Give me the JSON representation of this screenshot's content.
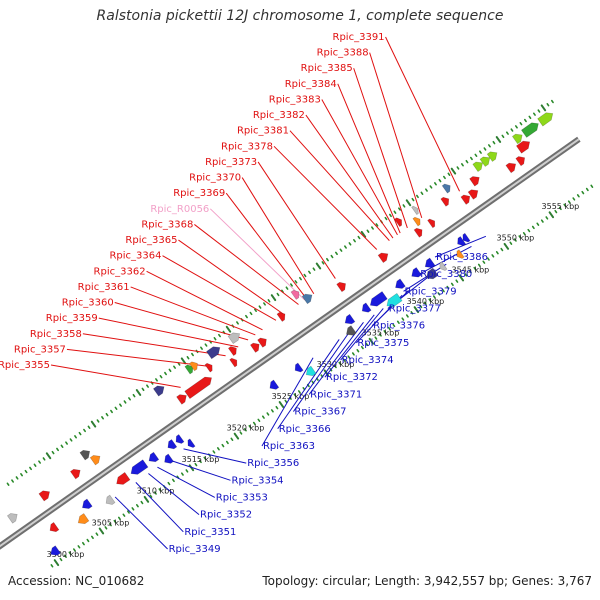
{
  "title": "Ralstonia pickettii 12J chromosome 1, complete sequence",
  "footer": {
    "accession": "Accession: NC_010682",
    "summary": "Topology: circular; Length: 3,942,557 bp; Genes: 3,767"
  },
  "colors": {
    "backbone": "#9a9a9a",
    "leader_top": "#e01010",
    "leader_rna": "#f2a0c8",
    "leader_bottom": "#1010c0",
    "tick": "#2a8a2a",
    "tick_major": "#2e7d32",
    "gene_red": "#e81818",
    "gene_blue": "#1a1adc",
    "gene_navy": "#3b3b8c",
    "gene_cyan": "#20e0e0",
    "gene_steel": "#4a78a8",
    "gene_grey": "#bdbdbd",
    "gene_darkgrey": "#555555",
    "gene_orange": "#ff8c1a",
    "gene_lime": "#8ed81a",
    "gene_green": "#34a834",
    "gene_pink": "#f26aa0"
  },
  "kbp_labels": [
    {
      "text": "3500 kbp",
      "pos": 3500
    },
    {
      "text": "3505 kbp",
      "pos": 3505
    },
    {
      "text": "3510 kbp",
      "pos": 3510
    },
    {
      "text": "3515 kbp",
      "pos": 3515
    },
    {
      "text": "3520 kbp",
      "pos": 3520
    },
    {
      "text": "3525 kbp",
      "pos": 3525
    },
    {
      "text": "3530 kbp",
      "pos": 3530
    },
    {
      "text": "3535 kbp",
      "pos": 3535
    },
    {
      "text": "3540 kbp",
      "pos": 3540
    },
    {
      "text": "3545 kbp",
      "pos": 3545
    },
    {
      "text": "3550 kbp",
      "pos": 3550
    },
    {
      "text": "3555 kbp",
      "pos": 3555
    }
  ],
  "top_labels": [
    {
      "text": "Rpic_3391",
      "pos": 3549.4,
      "kind": "cds"
    },
    {
      "text": "Rpic_3384",
      "pos": 3542.8,
      "kind": "cds"
    },
    {
      "text": "Rpic_3383",
      "pos": 3542.5,
      "kind": "cds"
    },
    {
      "text": "Rpic_3388",
      "pos": 3545.2,
      "kind": "cds"
    },
    {
      "text": "Rpic_3385",
      "pos": 3543.6,
      "kind": "cds"
    },
    {
      "text": "Rpic_3382",
      "pos": 3542.0,
      "kind": "cds"
    },
    {
      "text": "Rpic_3381",
      "pos": 3541.6,
      "kind": "cds"
    },
    {
      "text": "Rpic_3378",
      "pos": 3540.2,
      "kind": "cds"
    },
    {
      "text": "Rpic_3373",
      "pos": 3535.6,
      "kind": "cds"
    },
    {
      "text": "Rpic_3370",
      "pos": 3533.2,
      "kind": "cds"
    },
    {
      "text": "Rpic_3369",
      "pos": 3532.4,
      "kind": "cds"
    },
    {
      "text": "Rpic_R0056",
      "pos": 3532.2,
      "kind": "rna"
    },
    {
      "text": "Rpic_3368",
      "pos": 3531.5,
      "kind": "cds"
    },
    {
      "text": "Rpic_3364",
      "pos": 3529.0,
      "kind": "cds"
    },
    {
      "text": "Rpic_3365",
      "pos": 3529.9,
      "kind": "cds"
    },
    {
      "text": "Rpic_3362",
      "pos": 3527.5,
      "kind": "cds"
    },
    {
      "text": "Rpic_3361",
      "pos": 3526.7,
      "kind": "cds"
    },
    {
      "text": "Rpic_3360",
      "pos": 3525.9,
      "kind": "cds"
    },
    {
      "text": "Rpic_3359",
      "pos": 3524.8,
      "kind": "cds"
    },
    {
      "text": "Rpic_3358",
      "pos": 3523.4,
      "kind": "cds"
    },
    {
      "text": "Rpic_3357",
      "pos": 3521.7,
      "kind": "cds"
    },
    {
      "text": "Rpic_3355",
      "pos": 3518.4,
      "kind": "cds"
    }
  ],
  "bottom_labels": [
    {
      "text": "Rpic_3386",
      "pos": 3549.0
    },
    {
      "text": "Rpic_3380",
      "pos": 3547.4
    },
    {
      "text": "Rpic_3379",
      "pos": 3544.6
    },
    {
      "text": "Rpic_3377",
      "pos": 3542.7
    },
    {
      "text": "Rpic_3376",
      "pos": 3540.4
    },
    {
      "text": "Rpic_3375",
      "pos": 3539.7
    },
    {
      "text": "Rpic_3374",
      "pos": 3537.6
    },
    {
      "text": "Rpic_3372",
      "pos": 3536.6
    },
    {
      "text": "Rpic_3371",
      "pos": 3535.4
    },
    {
      "text": "Rpic_3367",
      "pos": 3533.8
    },
    {
      "text": "Rpic_3366",
      "pos": 3532.7
    },
    {
      "text": "Rpic_3363",
      "pos": 3529.8
    },
    {
      "text": "Rpic_3356",
      "pos": 3515.4
    },
    {
      "text": "Rpic_3354",
      "pos": 3513.7
    },
    {
      "text": "Rpic_3353",
      "pos": 3512.5
    },
    {
      "text": "Rpic_3352",
      "pos": 3511.5
    },
    {
      "text": "Rpic_3351",
      "pos": 3510.1
    },
    {
      "text": "Rpic_3349",
      "pos": 3507.8
    }
  ],
  "genes": [
    {
      "s": 3497.6,
      "e": 3498.3,
      "track": 2,
      "color": "gene_blue",
      "dir": "+",
      "name": "gene-3497"
    },
    {
      "s": 3498.8,
      "e": 3499.6,
      "track": 1,
      "color": "gene_grey",
      "dir": "+",
      "name": "gene-3498"
    },
    {
      "s": 3500.0,
      "e": 3500.8,
      "track": -3,
      "color": "gene_blue",
      "dir": "-",
      "name": "gene-3500a"
    },
    {
      "s": 3501.2,
      "e": 3501.9,
      "track": -1,
      "color": "gene_red",
      "dir": "-",
      "name": "gene-3501"
    },
    {
      "s": 3502.3,
      "e": 3503.2,
      "track": 1,
      "color": "gene_red",
      "dir": "+",
      "name": "gene-3502"
    },
    {
      "s": 3503.7,
      "e": 3504.6,
      "track": -2,
      "color": "gene_orange",
      "dir": "-",
      "name": "gene-3503"
    },
    {
      "s": 3504.8,
      "e": 3505.6,
      "track": -1,
      "color": "gene_blue",
      "dir": "-",
      "name": "gene-3504"
    },
    {
      "s": 3505.8,
      "e": 3506.6,
      "track": 1,
      "color": "gene_red",
      "dir": "+",
      "name": "gene-3505"
    },
    {
      "s": 3506.8,
      "e": 3507.5,
      "track": -2,
      "color": "gene_grey",
      "dir": "-",
      "name": "gene-3506"
    },
    {
      "s": 3507.5,
      "e": 3508.3,
      "track": 2,
      "color": "gene_darkgrey",
      "dir": "+",
      "name": "gene-3507"
    },
    {
      "s": 3508.0,
      "e": 3508.8,
      "track": 1,
      "color": "gene_orange",
      "dir": "+",
      "name": "gene-3508"
    },
    {
      "s": 3508.6,
      "e": 3509.8,
      "track": -1,
      "color": "gene_red",
      "dir": "-",
      "name": "gene-3508b"
    },
    {
      "s": 3510.2,
      "e": 3511.8,
      "track": -1,
      "color": "gene_blue",
      "dir": "-",
      "name": "gene-3510"
    },
    {
      "s": 3512.2,
      "e": 3513.0,
      "track": -1,
      "color": "gene_blue",
      "dir": "-",
      "name": "gene-3512"
    },
    {
      "s": 3513.3,
      "e": 3514.0,
      "track": -2,
      "color": "gene_blue",
      "dir": "-",
      "name": "gene-3513"
    },
    {
      "s": 3514.3,
      "e": 3515.0,
      "track": -1,
      "color": "gene_blue",
      "dir": "-",
      "name": "gene-3514"
    },
    {
      "s": 3515.2,
      "e": 3515.8,
      "track": -1,
      "color": "gene_blue",
      "dir": "-",
      "name": "gene-3515"
    },
    {
      "s": 3515.9,
      "e": 3516.4,
      "track": -2,
      "color": "gene_blue",
      "dir": "-",
      "name": "gene-3515b"
    },
    {
      "s": 3516.3,
      "e": 3517.2,
      "track": 3,
      "color": "gene_navy",
      "dir": "+",
      "name": "gene-3516"
    },
    {
      "s": 3517.6,
      "e": 3518.4,
      "track": 1,
      "color": "gene_red",
      "dir": "+",
      "name": "gene-3517"
    },
    {
      "s": 3518.5,
      "e": 3521.2,
      "track": 1,
      "color": "gene_red",
      "dir": "+",
      "name": "gene-3518"
    },
    {
      "s": 3519.8,
      "e": 3520.4,
      "track": 3,
      "color": "gene_green",
      "dir": "+",
      "name": "gene-3519"
    },
    {
      "s": 3520.3,
      "e": 3520.9,
      "track": 3,
      "color": "gene_orange",
      "dir": "+",
      "name": "gene-3520"
    },
    {
      "s": 3521.4,
      "e": 3521.9,
      "track": 2,
      "color": "gene_red",
      "dir": "+",
      "name": "gene-3521"
    },
    {
      "s": 3522.2,
      "e": 3523.4,
      "track": 3,
      "color": "gene_navy",
      "dir": "+",
      "name": "gene-3522"
    },
    {
      "s": 3523.5,
      "e": 3524.0,
      "track": 1,
      "color": "gene_red",
      "dir": "+",
      "name": "gene-3523"
    },
    {
      "s": 3524.0,
      "e": 3524.6,
      "track": 2,
      "color": "gene_red",
      "dir": "+",
      "name": "gene-3524"
    },
    {
      "s": 3524.6,
      "e": 3525.6,
      "track": 3,
      "color": "gene_grey",
      "dir": "+",
      "name": "gene-3524b"
    },
    {
      "s": 3525.0,
      "e": 3525.7,
      "track": -2,
      "color": "gene_blue",
      "dir": "-",
      "name": "gene-3525"
    },
    {
      "s": 3525.8,
      "e": 3526.5,
      "track": 1,
      "color": "gene_red",
      "dir": "+",
      "name": "gene-3525b"
    },
    {
      "s": 3526.6,
      "e": 3527.3,
      "track": 1,
      "color": "gene_red",
      "dir": "+",
      "name": "gene-3526"
    },
    {
      "s": 3527.8,
      "e": 3528.4,
      "track": -2,
      "color": "gene_blue",
      "dir": "-",
      "name": "gene-3527"
    },
    {
      "s": 3528.4,
      "e": 3529.2,
      "track": -3,
      "color": "gene_cyan",
      "dir": "-",
      "name": "gene-3528"
    },
    {
      "s": 3529.4,
      "e": 3530.0,
      "track": 2,
      "color": "gene_red",
      "dir": "+",
      "name": "gene-3529"
    },
    {
      "s": 3531.6,
      "e": 3532.2,
      "track": 3,
      "color": "gene_pink",
      "dir": "+",
      "name": "gene-3531"
    },
    {
      "s": 3532.2,
      "e": 3533.0,
      "track": 2,
      "color": "gene_steel",
      "dir": "+",
      "name": "gene-3532"
    },
    {
      "s": 3533.5,
      "e": 3534.3,
      "track": -2,
      "color": "gene_darkgrey",
      "dir": "-",
      "name": "gene-3533"
    },
    {
      "s": 3534.0,
      "e": 3534.8,
      "track": -1,
      "color": "gene_blue",
      "dir": "-",
      "name": "gene-3534"
    },
    {
      "s": 3535.4,
      "e": 3536.1,
      "track": 1,
      "color": "gene_red",
      "dir": "+",
      "name": "gene-3535"
    },
    {
      "s": 3535.9,
      "e": 3536.6,
      "track": -1,
      "color": "gene_blue",
      "dir": "-",
      "name": "gene-3535b"
    },
    {
      "s": 3536.8,
      "e": 3538.4,
      "track": -1,
      "color": "gene_blue",
      "dir": "-",
      "name": "gene-3536"
    },
    {
      "s": 3538.0,
      "e": 3539.4,
      "track": -2,
      "color": "gene_cyan",
      "dir": "-",
      "name": "gene-3538"
    },
    {
      "s": 3539.6,
      "e": 3540.4,
      "track": -1,
      "color": "gene_blue",
      "dir": "-",
      "name": "gene-3539"
    },
    {
      "s": 3540.0,
      "e": 3540.8,
      "track": 1,
      "color": "gene_red",
      "dir": "+",
      "name": "gene-3540"
    },
    {
      "s": 3541.4,
      "e": 3542.2,
      "track": -1,
      "color": "gene_blue",
      "dir": "-",
      "name": "gene-3541"
    },
    {
      "s": 3542.4,
      "e": 3543.4,
      "track": -2,
      "color": "gene_navy",
      "dir": "-",
      "name": "gene-3542"
    },
    {
      "s": 3542.9,
      "e": 3543.7,
      "track": -1,
      "color": "gene_blue",
      "dir": "-",
      "name": "gene-3542b"
    },
    {
      "s": 3543.1,
      "e": 3543.6,
      "track": 3,
      "color": "gene_red",
      "dir": "+",
      "name": "gene-3543"
    },
    {
      "s": 3543.9,
      "e": 3544.4,
      "track": -2,
      "color": "gene_grey",
      "dir": "-",
      "name": "gene-3543b"
    },
    {
      "s": 3544.0,
      "e": 3544.6,
      "track": 1,
      "color": "gene_red",
      "dir": "+",
      "name": "gene-3544"
    },
    {
      "s": 3544.5,
      "e": 3545.0,
      "track": 2,
      "color": "gene_orange",
      "dir": "+",
      "name": "gene-3544b"
    },
    {
      "s": 3545.0,
      "e": 3545.4,
      "track": 3,
      "color": "gene_grey",
      "dir": "+",
      "name": "gene-3545"
    },
    {
      "s": 3545.5,
      "e": 3546.0,
      "track": 1,
      "color": "gene_red",
      "dir": "+",
      "name": "gene-3545b"
    },
    {
      "s": 3545.8,
      "e": 3546.3,
      "track": -2,
      "color": "gene_orange",
      "dir": "-",
      "name": "gene-3545c"
    },
    {
      "s": 3546.5,
      "e": 3547.1,
      "track": -1,
      "color": "gene_blue",
      "dir": "-",
      "name": "gene-3546"
    },
    {
      "s": 3547.1,
      "e": 3547.6,
      "track": -1,
      "color": "gene_blue",
      "dir": "-",
      "name": "gene-3547"
    },
    {
      "s": 3547.6,
      "e": 3548.2,
      "track": 2,
      "color": "gene_red",
      "dir": "+",
      "name": "gene-3547b"
    },
    {
      "s": 3548.4,
      "e": 3549.0,
      "track": 3,
      "color": "gene_steel",
      "dir": "+",
      "name": "gene-3548"
    },
    {
      "s": 3549.2,
      "e": 3549.9,
      "track": 1,
      "color": "gene_red",
      "dir": "+",
      "name": "gene-3549"
    },
    {
      "s": 3550.0,
      "e": 3550.8,
      "track": 1,
      "color": "gene_red",
      "dir": "+",
      "name": "gene-3550"
    },
    {
      "s": 3550.8,
      "e": 3551.6,
      "track": 2,
      "color": "gene_red",
      "dir": "+",
      "name": "gene-3550b"
    },
    {
      "s": 3551.8,
      "e": 3552.6,
      "track": 3,
      "color": "gene_lime",
      "dir": "+",
      "name": "gene-3551"
    },
    {
      "s": 3552.6,
      "e": 3553.4,
      "track": 3,
      "color": "gene_lime",
      "dir": "+",
      "name": "gene-3552"
    },
    {
      "s": 3553.4,
      "e": 3554.2,
      "track": 3,
      "color": "gene_lime",
      "dir": "+",
      "name": "gene-3553"
    },
    {
      "s": 3554.2,
      "e": 3555.0,
      "track": 1,
      "color": "gene_red",
      "dir": "+",
      "name": "gene-3554"
    },
    {
      "s": 3555.3,
      "e": 3556.0,
      "track": 1,
      "color": "gene_red",
      "dir": "+",
      "name": "gene-3555"
    },
    {
      "s": 3556.0,
      "e": 3557.2,
      "track": 2,
      "color": "gene_red",
      "dir": "+",
      "name": "gene-3556"
    },
    {
      "s": 3556.2,
      "e": 3557.0,
      "track": 3,
      "color": "gene_lime",
      "dir": "+",
      "name": "gene-3556b"
    },
    {
      "s": 3557.2,
      "e": 3558.8,
      "track": 3,
      "color": "gene_green",
      "dir": "+",
      "name": "gene-3557"
    },
    {
      "s": 3559.0,
      "e": 3560.4,
      "track": 3,
      "color": "gene_lime",
      "dir": "+",
      "name": "gene-3559"
    }
  ]
}
